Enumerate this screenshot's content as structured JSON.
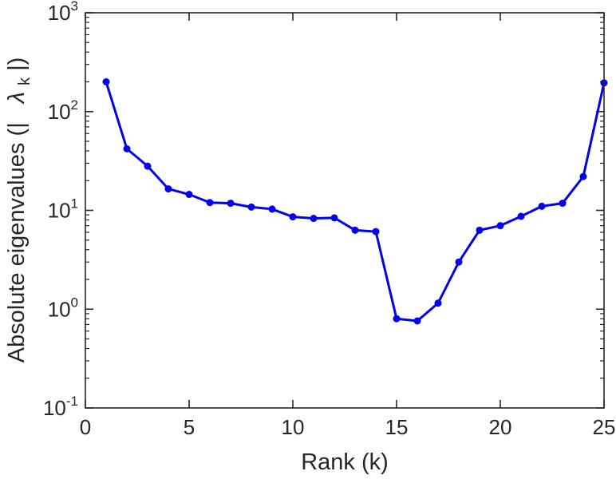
{
  "figure": {
    "background": "#ffffff"
  },
  "chart_data": {
    "type": "line",
    "title": "",
    "xlabel": "Rank (k)",
    "ylabel": {
      "prefix": "Absolute eigenvalues (|",
      "symbol": "λ",
      "subscript": "k",
      "suffix": "|)"
    },
    "x": [
      1,
      2,
      3,
      4,
      5,
      6,
      7,
      8,
      9,
      10,
      11,
      12,
      13,
      14,
      15,
      16,
      17,
      18,
      19,
      20,
      21,
      22,
      23,
      24,
      25
    ],
    "y": [
      200,
      42,
      28,
      16.5,
      14.5,
      12,
      11.8,
      10.8,
      10.3,
      8.6,
      8.3,
      8.4,
      6.3,
      6.1,
      0.8,
      0.76,
      1.15,
      3.0,
      6.3,
      7.0,
      8.7,
      11,
      11.8,
      22,
      195
    ],
    "xlim": [
      0,
      25
    ],
    "x_ticks": [
      0,
      5,
      10,
      15,
      20,
      25
    ],
    "y_scale": "log",
    "ylim_exponents": [
      -1,
      3
    ],
    "y_tick_exponents": [
      -1,
      0,
      1,
      2,
      3
    ],
    "y_tick_base": "10",
    "grid": false,
    "legend": null,
    "line_color": "#0000ee",
    "marker": "o",
    "axis_color": "#262626"
  }
}
